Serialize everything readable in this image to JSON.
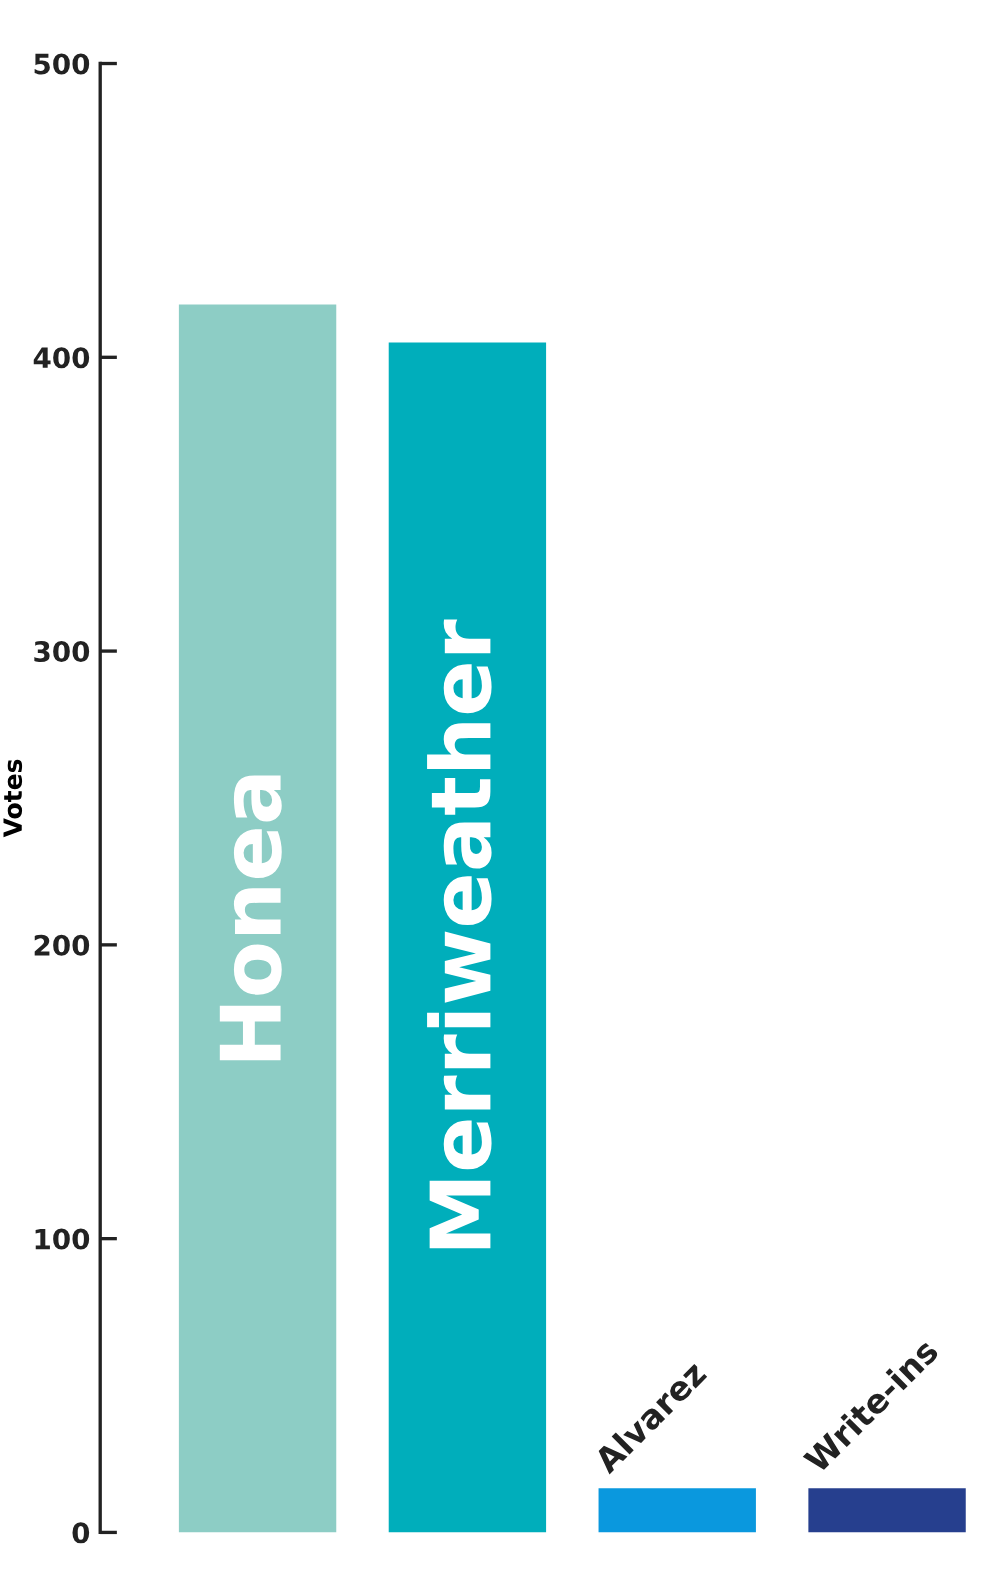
{
  "chart_data": {
    "type": "bar",
    "ylabel": "Votes",
    "categories": [
      "Honea",
      "Merriweather",
      "Alvarez",
      "Write-ins"
    ],
    "values": [
      418,
      405,
      15,
      15
    ],
    "colors": [
      "#8dcdc5",
      "#00aebb",
      "#0a98de",
      "#263f8e"
    ],
    "ylim": [
      0,
      500
    ],
    "yticks": [
      0,
      100,
      200,
      300,
      400,
      500
    ],
    "grid": false
  }
}
